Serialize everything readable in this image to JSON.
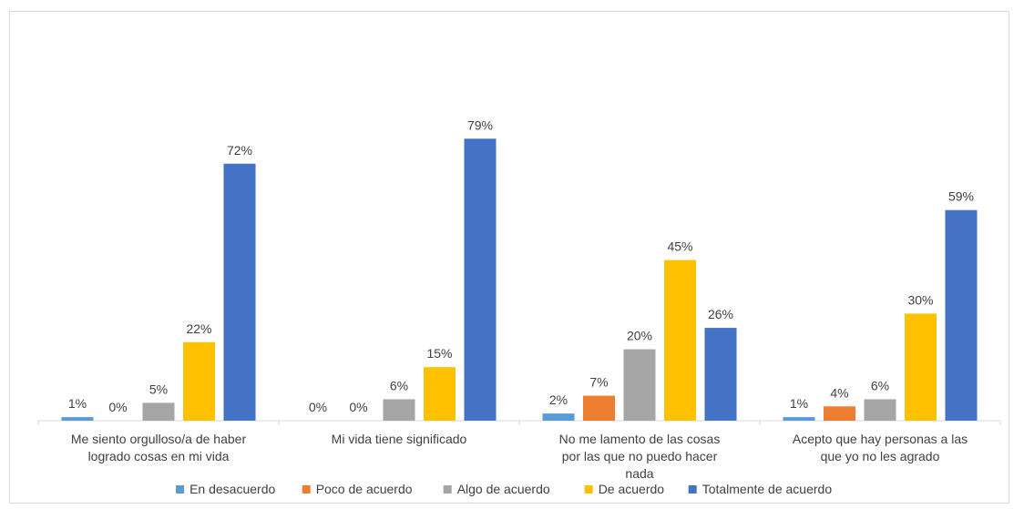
{
  "chart_data": {
    "type": "bar",
    "title": "",
    "xlabel": "",
    "ylabel": "",
    "ylim": [
      0,
      100
    ],
    "grid": false,
    "legend_position": "bottom",
    "categories": [
      [
        "Me siento orgulloso/a de haber",
        "logrado cosas en mi vida"
      ],
      [
        "Mi vida tiene significado"
      ],
      [
        "No me lamento de las cosas",
        "por las que no puedo hacer",
        "nada"
      ],
      [
        "Acepto que hay personas a las",
        "que yo no les agrado"
      ]
    ],
    "series": [
      {
        "name": "En desacuerdo",
        "color": "#5B9BD5",
        "values": [
          1,
          0,
          2,
          1
        ],
        "labels": [
          "1%",
          "0%",
          "2%",
          "1%"
        ]
      },
      {
        "name": "Poco de acuerdo",
        "color": "#ED7D31",
        "values": [
          0,
          0,
          7,
          4
        ],
        "labels": [
          "0%",
          "0%",
          "7%",
          "4%"
        ]
      },
      {
        "name": "Algo de acuerdo",
        "color": "#A5A5A5",
        "values": [
          5,
          6,
          20,
          6
        ],
        "labels": [
          "5%",
          "6%",
          "20%",
          "6%"
        ]
      },
      {
        "name": "De acuerdo",
        "color": "#FFC000",
        "values": [
          22,
          15,
          45,
          30
        ],
        "labels": [
          "22%",
          "15%",
          "45%",
          "30%"
        ]
      },
      {
        "name": "Totalmente de acuerdo",
        "color": "#4472C4",
        "values": [
          72,
          79,
          26,
          59
        ],
        "labels": [
          "72%",
          "79%",
          "26%",
          "59%"
        ]
      }
    ]
  }
}
